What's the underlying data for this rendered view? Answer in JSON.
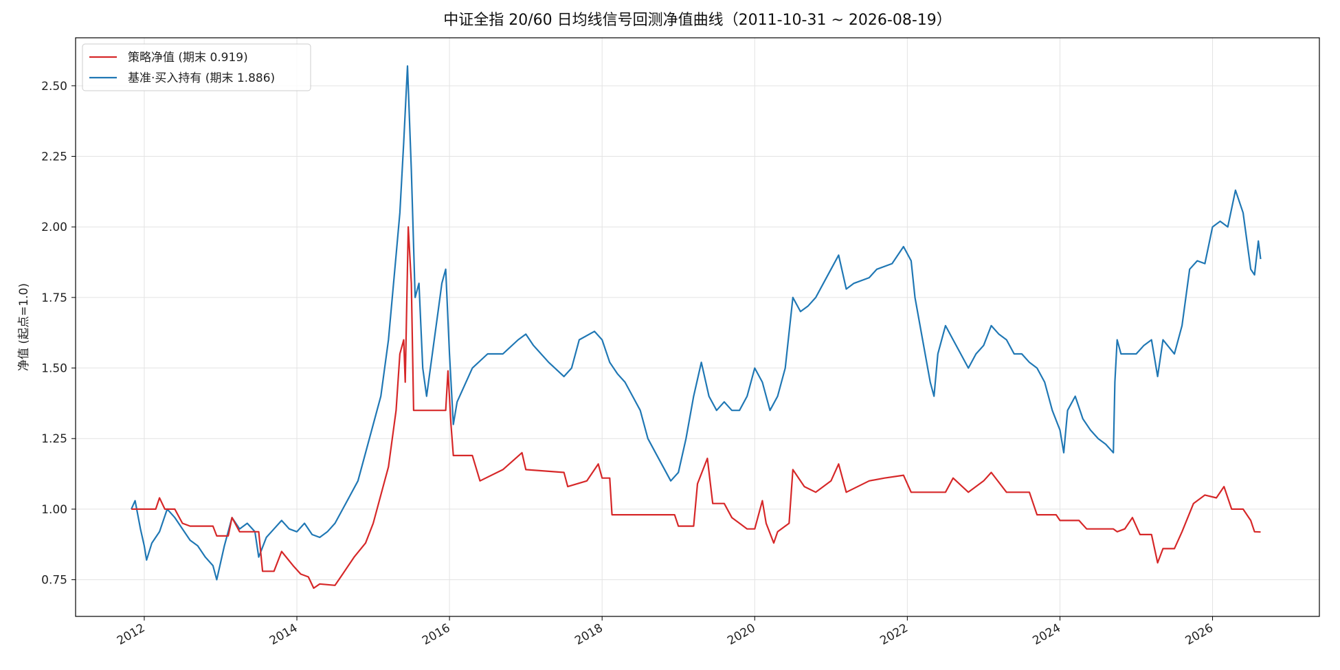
{
  "chart_data": {
    "type": "line",
    "title": "中证全指 20/60 日均线信号回测净值曲线（2011-10-31 ~ 2026-08-19）",
    "xlabel": "",
    "ylabel": "净值 (起点=1.0)",
    "xlim": [
      2011.1,
      2027.4
    ],
    "ylim": [
      0.62,
      2.67
    ],
    "x_ticks": [
      2012,
      2014,
      2016,
      2018,
      2020,
      2022,
      2024,
      2026
    ],
    "x_tick_labels": [
      "2012",
      "2014",
      "2016",
      "2018",
      "2020",
      "2022",
      "2024",
      "2026"
    ],
    "y_ticks": [
      0.75,
      1.0,
      1.25,
      1.5,
      1.75,
      2.0,
      2.25,
      2.5
    ],
    "y_tick_labels": [
      "0.75",
      "1.00",
      "1.25",
      "1.50",
      "1.75",
      "2.00",
      "2.25",
      "2.50"
    ],
    "grid": true,
    "legend_position": "top-left",
    "series": [
      {
        "name": "策略净值 (期末 0.919)",
        "color": "#d62728",
        "points": [
          [
            2011.83,
            1.0
          ],
          [
            2012.0,
            1.0
          ],
          [
            2012.15,
            1.0
          ],
          [
            2012.2,
            1.04
          ],
          [
            2012.27,
            1.0
          ],
          [
            2012.4,
            1.0
          ],
          [
            2012.5,
            0.95
          ],
          [
            2012.6,
            0.94
          ],
          [
            2012.9,
            0.94
          ],
          [
            2012.95,
            0.905
          ],
          [
            2013.1,
            0.905
          ],
          [
            2013.15,
            0.97
          ],
          [
            2013.25,
            0.92
          ],
          [
            2013.5,
            0.92
          ],
          [
            2013.55,
            0.78
          ],
          [
            2013.7,
            0.78
          ],
          [
            2013.8,
            0.85
          ],
          [
            2013.95,
            0.8
          ],
          [
            2014.05,
            0.77
          ],
          [
            2014.15,
            0.76
          ],
          [
            2014.22,
            0.72
          ],
          [
            2014.3,
            0.735
          ],
          [
            2014.5,
            0.73
          ],
          [
            2014.6,
            0.77
          ],
          [
            2014.75,
            0.83
          ],
          [
            2014.9,
            0.88
          ],
          [
            2015.0,
            0.95
          ],
          [
            2015.1,
            1.05
          ],
          [
            2015.2,
            1.15
          ],
          [
            2015.3,
            1.35
          ],
          [
            2015.35,
            1.55
          ],
          [
            2015.4,
            1.6
          ],
          [
            2015.42,
            1.45
          ],
          [
            2015.46,
            2.0
          ],
          [
            2015.5,
            1.8
          ],
          [
            2015.53,
            1.35
          ],
          [
            2015.6,
            1.35
          ],
          [
            2015.95,
            1.35
          ],
          [
            2015.98,
            1.49
          ],
          [
            2016.02,
            1.3
          ],
          [
            2016.05,
            1.19
          ],
          [
            2016.3,
            1.19
          ],
          [
            2016.4,
            1.1
          ],
          [
            2016.7,
            1.14
          ],
          [
            2016.95,
            1.2
          ],
          [
            2017.0,
            1.14
          ],
          [
            2017.5,
            1.13
          ],
          [
            2017.55,
            1.08
          ],
          [
            2017.8,
            1.1
          ],
          [
            2017.95,
            1.16
          ],
          [
            2018.0,
            1.11
          ],
          [
            2018.1,
            1.11
          ],
          [
            2018.13,
            0.98
          ],
          [
            2018.5,
            0.98
          ],
          [
            2018.95,
            0.98
          ],
          [
            2019.0,
            0.94
          ],
          [
            2019.2,
            0.94
          ],
          [
            2019.25,
            1.09
          ],
          [
            2019.38,
            1.18
          ],
          [
            2019.45,
            1.02
          ],
          [
            2019.6,
            1.02
          ],
          [
            2019.7,
            0.97
          ],
          [
            2019.9,
            0.93
          ],
          [
            2020.0,
            0.93
          ],
          [
            2020.1,
            1.03
          ],
          [
            2020.15,
            0.95
          ],
          [
            2020.25,
            0.88
          ],
          [
            2020.3,
            0.92
          ],
          [
            2020.45,
            0.95
          ],
          [
            2020.5,
            1.14
          ],
          [
            2020.65,
            1.08
          ],
          [
            2020.8,
            1.06
          ],
          [
            2021.0,
            1.1
          ],
          [
            2021.1,
            1.16
          ],
          [
            2021.2,
            1.06
          ],
          [
            2021.5,
            1.1
          ],
          [
            2021.7,
            1.11
          ],
          [
            2021.95,
            1.12
          ],
          [
            2022.05,
            1.06
          ],
          [
            2022.5,
            1.06
          ],
          [
            2022.6,
            1.11
          ],
          [
            2022.8,
            1.06
          ],
          [
            2023.0,
            1.1
          ],
          [
            2023.1,
            1.13
          ],
          [
            2023.3,
            1.06
          ],
          [
            2023.6,
            1.06
          ],
          [
            2023.7,
            0.98
          ],
          [
            2023.95,
            0.98
          ],
          [
            2024.0,
            0.96
          ],
          [
            2024.25,
            0.96
          ],
          [
            2024.35,
            0.93
          ],
          [
            2024.7,
            0.93
          ],
          [
            2024.75,
            0.92
          ],
          [
            2024.85,
            0.93
          ],
          [
            2024.95,
            0.97
          ],
          [
            2025.05,
            0.91
          ],
          [
            2025.2,
            0.91
          ],
          [
            2025.28,
            0.81
          ],
          [
            2025.35,
            0.86
          ],
          [
            2025.5,
            0.86
          ],
          [
            2025.6,
            0.92
          ],
          [
            2025.75,
            1.02
          ],
          [
            2025.9,
            1.05
          ],
          [
            2026.05,
            1.04
          ],
          [
            2026.15,
            1.08
          ],
          [
            2026.25,
            1.0
          ],
          [
            2026.4,
            1.0
          ],
          [
            2026.5,
            0.96
          ],
          [
            2026.55,
            0.92
          ],
          [
            2026.63,
            0.919
          ]
        ]
      },
      {
        "name": "基准·买入持有 (期末 1.886)",
        "color": "#1f77b4",
        "points": [
          [
            2011.83,
            1.0
          ],
          [
            2011.88,
            1.03
          ],
          [
            2011.95,
            0.93
          ],
          [
            2012.0,
            0.87
          ],
          [
            2012.03,
            0.82
          ],
          [
            2012.1,
            0.88
          ],
          [
            2012.2,
            0.92
          ],
          [
            2012.3,
            1.0
          ],
          [
            2012.4,
            0.97
          ],
          [
            2012.5,
            0.93
          ],
          [
            2012.6,
            0.89
          ],
          [
            2012.7,
            0.87
          ],
          [
            2012.8,
            0.83
          ],
          [
            2012.9,
            0.8
          ],
          [
            2012.95,
            0.75
          ],
          [
            2013.05,
            0.87
          ],
          [
            2013.15,
            0.97
          ],
          [
            2013.25,
            0.93
          ],
          [
            2013.35,
            0.95
          ],
          [
            2013.45,
            0.92
          ],
          [
            2013.5,
            0.83
          ],
          [
            2013.6,
            0.9
          ],
          [
            2013.7,
            0.93
          ],
          [
            2013.8,
            0.96
          ],
          [
            2013.9,
            0.93
          ],
          [
            2014.0,
            0.92
          ],
          [
            2014.1,
            0.95
          ],
          [
            2014.2,
            0.91
          ],
          [
            2014.3,
            0.9
          ],
          [
            2014.4,
            0.92
          ],
          [
            2014.5,
            0.95
          ],
          [
            2014.6,
            1.0
          ],
          [
            2014.7,
            1.05
          ],
          [
            2014.8,
            1.1
          ],
          [
            2014.9,
            1.2
          ],
          [
            2015.0,
            1.3
          ],
          [
            2015.1,
            1.4
          ],
          [
            2015.2,
            1.6
          ],
          [
            2015.3,
            1.9
          ],
          [
            2015.35,
            2.05
          ],
          [
            2015.4,
            2.3
          ],
          [
            2015.45,
            2.57
          ],
          [
            2015.5,
            2.2
          ],
          [
            2015.55,
            1.75
          ],
          [
            2015.6,
            1.8
          ],
          [
            2015.65,
            1.5
          ],
          [
            2015.7,
            1.4
          ],
          [
            2015.8,
            1.6
          ],
          [
            2015.85,
            1.7
          ],
          [
            2015.9,
            1.8
          ],
          [
            2015.95,
            1.85
          ],
          [
            2016.0,
            1.55
          ],
          [
            2016.05,
            1.3
          ],
          [
            2016.1,
            1.38
          ],
          [
            2016.3,
            1.5
          ],
          [
            2016.5,
            1.55
          ],
          [
            2016.7,
            1.55
          ],
          [
            2016.9,
            1.6
          ],
          [
            2017.0,
            1.62
          ],
          [
            2017.1,
            1.58
          ],
          [
            2017.3,
            1.52
          ],
          [
            2017.5,
            1.47
          ],
          [
            2017.6,
            1.5
          ],
          [
            2017.7,
            1.6
          ],
          [
            2017.9,
            1.63
          ],
          [
            2018.0,
            1.6
          ],
          [
            2018.1,
            1.52
          ],
          [
            2018.2,
            1.48
          ],
          [
            2018.3,
            1.45
          ],
          [
            2018.4,
            1.4
          ],
          [
            2018.5,
            1.35
          ],
          [
            2018.6,
            1.25
          ],
          [
            2018.7,
            1.2
          ],
          [
            2018.8,
            1.15
          ],
          [
            2018.9,
            1.1
          ],
          [
            2019.0,
            1.13
          ],
          [
            2019.1,
            1.25
          ],
          [
            2019.2,
            1.4
          ],
          [
            2019.3,
            1.52
          ],
          [
            2019.4,
            1.4
          ],
          [
            2019.5,
            1.35
          ],
          [
            2019.6,
            1.38
          ],
          [
            2019.7,
            1.35
          ],
          [
            2019.8,
            1.35
          ],
          [
            2019.9,
            1.4
          ],
          [
            2020.0,
            1.5
          ],
          [
            2020.1,
            1.45
          ],
          [
            2020.2,
            1.35
          ],
          [
            2020.3,
            1.4
          ],
          [
            2020.4,
            1.5
          ],
          [
            2020.5,
            1.75
          ],
          [
            2020.6,
            1.7
          ],
          [
            2020.7,
            1.72
          ],
          [
            2020.8,
            1.75
          ],
          [
            2020.9,
            1.8
          ],
          [
            2021.0,
            1.85
          ],
          [
            2021.1,
            1.9
          ],
          [
            2021.2,
            1.78
          ],
          [
            2021.3,
            1.8
          ],
          [
            2021.5,
            1.82
          ],
          [
            2021.6,
            1.85
          ],
          [
            2021.8,
            1.87
          ],
          [
            2021.95,
            1.93
          ],
          [
            2022.05,
            1.88
          ],
          [
            2022.1,
            1.75
          ],
          [
            2022.2,
            1.6
          ],
          [
            2022.3,
            1.45
          ],
          [
            2022.35,
            1.4
          ],
          [
            2022.4,
            1.55
          ],
          [
            2022.5,
            1.65
          ],
          [
            2022.6,
            1.6
          ],
          [
            2022.7,
            1.55
          ],
          [
            2022.8,
            1.5
          ],
          [
            2022.9,
            1.55
          ],
          [
            2023.0,
            1.58
          ],
          [
            2023.1,
            1.65
          ],
          [
            2023.2,
            1.62
          ],
          [
            2023.3,
            1.6
          ],
          [
            2023.4,
            1.55
          ],
          [
            2023.5,
            1.55
          ],
          [
            2023.6,
            1.52
          ],
          [
            2023.7,
            1.5
          ],
          [
            2023.8,
            1.45
          ],
          [
            2023.9,
            1.35
          ],
          [
            2024.0,
            1.28
          ],
          [
            2024.05,
            1.2
          ],
          [
            2024.1,
            1.35
          ],
          [
            2024.2,
            1.4
          ],
          [
            2024.3,
            1.32
          ],
          [
            2024.4,
            1.28
          ],
          [
            2024.5,
            1.25
          ],
          [
            2024.6,
            1.23
          ],
          [
            2024.7,
            1.2
          ],
          [
            2024.72,
            1.45
          ],
          [
            2024.75,
            1.6
          ],
          [
            2024.8,
            1.55
          ],
          [
            2024.9,
            1.55
          ],
          [
            2025.0,
            1.55
          ],
          [
            2025.1,
            1.58
          ],
          [
            2025.2,
            1.6
          ],
          [
            2025.28,
            1.47
          ],
          [
            2025.35,
            1.6
          ],
          [
            2025.5,
            1.55
          ],
          [
            2025.6,
            1.65
          ],
          [
            2025.7,
            1.85
          ],
          [
            2025.8,
            1.88
          ],
          [
            2025.9,
            1.87
          ],
          [
            2026.0,
            2.0
          ],
          [
            2026.1,
            2.02
          ],
          [
            2026.2,
            2.0
          ],
          [
            2026.3,
            2.13
          ],
          [
            2026.4,
            2.05
          ],
          [
            2026.5,
            1.85
          ],
          [
            2026.55,
            1.83
          ],
          [
            2026.6,
            1.95
          ],
          [
            2026.63,
            1.886
          ]
        ]
      }
    ]
  }
}
